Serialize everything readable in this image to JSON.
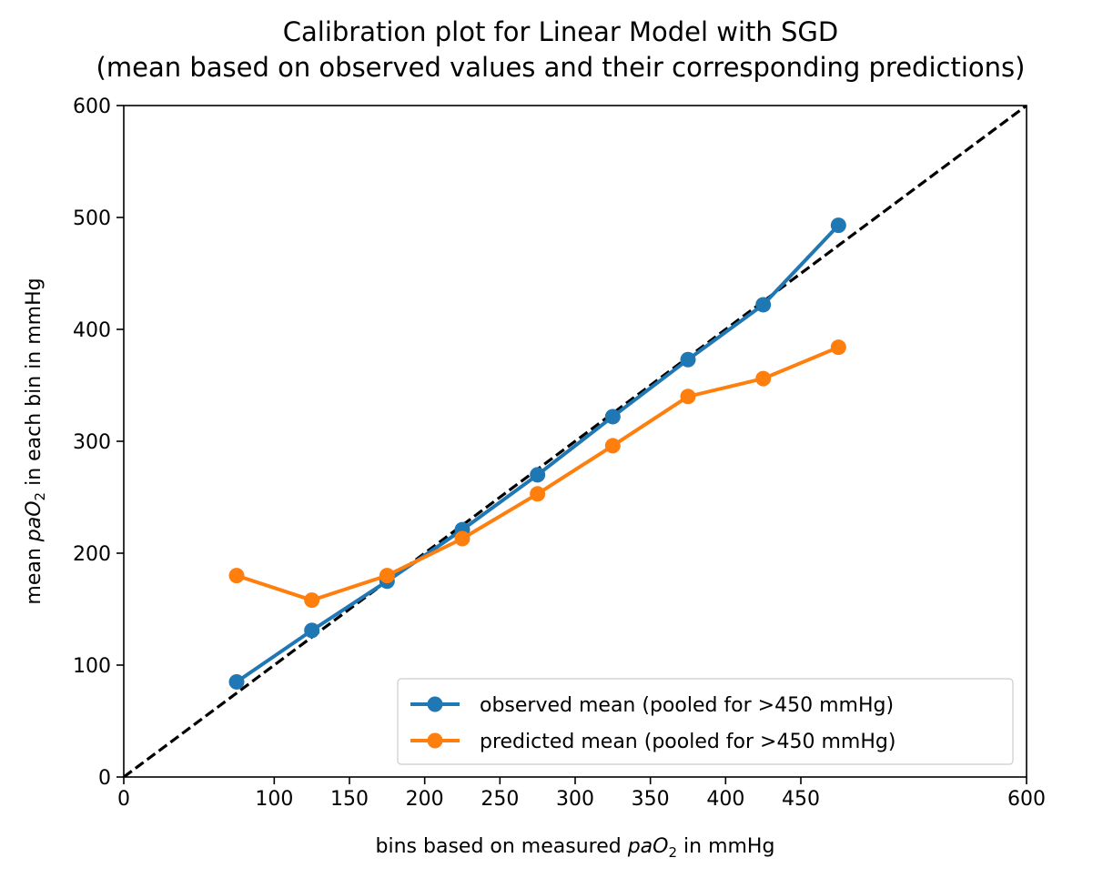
{
  "chart_data": {
    "type": "line",
    "title": [
      "Calibration plot for Linear Model with SGD",
      "(mean based on observed values and their corresponding predictions)"
    ],
    "xlabel": {
      "prefix": "bins based on measured ",
      "var": "paO",
      "sub": "2",
      "suffix": " in mmHg"
    },
    "ylabel": {
      "prefix": "mean ",
      "var": "paO",
      "sub": "2",
      "suffix": " in each bin in mmHg"
    },
    "xlim": [
      0,
      600
    ],
    "ylim": [
      0,
      600
    ],
    "xticks": [
      0,
      100,
      150,
      200,
      250,
      300,
      350,
      400,
      450,
      600
    ],
    "yticks": [
      0,
      100,
      200,
      300,
      400,
      500,
      600
    ],
    "grid": false,
    "legend_position": "lower-right",
    "reference_line": {
      "x": [
        0,
        600
      ],
      "y": [
        0,
        600
      ],
      "style": "dashed",
      "color": "#000000"
    },
    "series": [
      {
        "name": "observed mean (pooled for >450 mmHg)",
        "color": "#1f77b4",
        "marker": "circle",
        "x": [
          75,
          125,
          175,
          225,
          275,
          325,
          375,
          425,
          475
        ],
        "y": [
          85,
          131,
          175,
          221,
          270,
          322,
          373,
          422,
          493
        ]
      },
      {
        "name": "predicted mean (pooled for >450 mmHg)",
        "color": "#ff7f0e",
        "marker": "circle",
        "x": [
          75,
          125,
          175,
          225,
          275,
          325,
          375,
          425,
          475
        ],
        "y": [
          180,
          158,
          180,
          213,
          253,
          296,
          340,
          356,
          384
        ]
      }
    ]
  }
}
